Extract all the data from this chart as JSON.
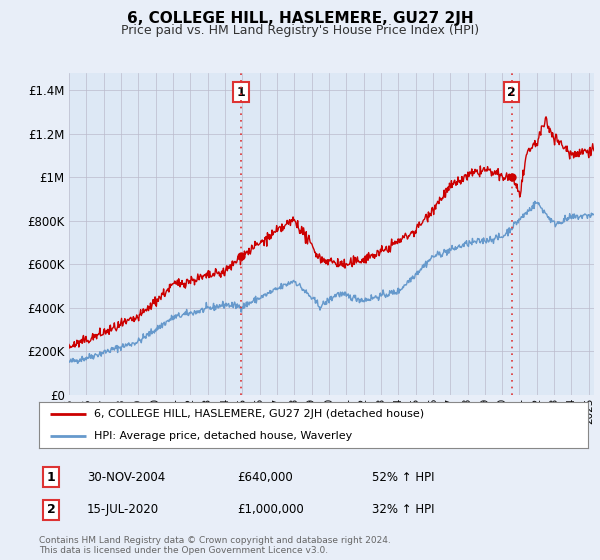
{
  "title": "6, COLLEGE HILL, HASLEMERE, GU27 2JH",
  "subtitle": "Price paid vs. HM Land Registry's House Price Index (HPI)",
  "ytick_values": [
    0,
    200000,
    400000,
    600000,
    800000,
    1000000,
    1200000,
    1400000
  ],
  "ylim": [
    0,
    1480000
  ],
  "xlim_start": 1995.0,
  "xlim_end": 2025.3,
  "red_color": "#cc0000",
  "blue_color": "#6699cc",
  "marker1_year": 2004.92,
  "marker1_value": 640000,
  "marker1_label": "1",
  "marker2_year": 2020.54,
  "marker2_value": 1000000,
  "marker2_label": "2",
  "legend_line1": "6, COLLEGE HILL, HASLEMERE, GU27 2JH (detached house)",
  "legend_line2": "HPI: Average price, detached house, Waverley",
  "table_row1_num": "1",
  "table_row1_date": "30-NOV-2004",
  "table_row1_price": "£640,000",
  "table_row1_hpi": "52% ↑ HPI",
  "table_row2_num": "2",
  "table_row2_date": "15-JUL-2020",
  "table_row2_price": "£1,000,000",
  "table_row2_hpi": "32% ↑ HPI",
  "footnote1": "Contains HM Land Registry data © Crown copyright and database right 2024.",
  "footnote2": "This data is licensed under the Open Government Licence v3.0.",
  "vline_color": "#dd3333",
  "bg_color": "#e8eef8",
  "plot_bg": "#dde8f5",
  "grid_color": "#bbbbcc"
}
